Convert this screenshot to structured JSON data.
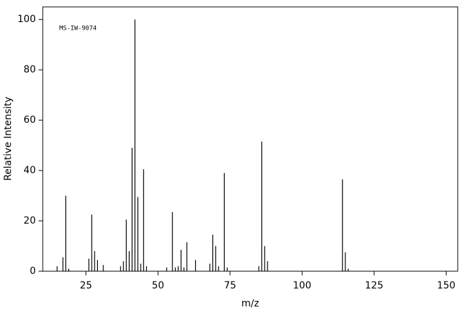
{
  "chart_data": {
    "type": "stem",
    "annotation": "MS-IW-9074",
    "xlabel": "m/z",
    "ylabel": "Relative Intensity",
    "x": [
      15,
      17,
      18,
      19,
      26,
      27,
      28,
      29,
      31,
      37,
      38,
      39,
      40,
      41,
      42,
      43,
      44,
      45,
      46,
      53,
      55,
      56,
      57,
      58,
      59,
      60,
      63,
      68,
      69,
      70,
      71,
      73,
      74,
      85,
      86,
      87,
      88,
      114,
      115,
      116
    ],
    "values": [
      2,
      5.5,
      30,
      1,
      5,
      22.5,
      8,
      4.5,
      2.5,
      2,
      4,
      20.5,
      8,
      49,
      100,
      29.5,
      3,
      40.5,
      2,
      1.5,
      23.5,
      1.5,
      2,
      8.5,
      1.5,
      11.5,
      4.5,
      3,
      14.5,
      10,
      2,
      39,
      1.5,
      2,
      51.5,
      10,
      4,
      36.5,
      7.5,
      1
    ],
    "color": "#000000",
    "xlim": [
      10,
      154
    ],
    "ylim": [
      0,
      105
    ],
    "xticks": [
      25,
      50,
      75,
      100,
      125,
      150
    ],
    "yticks": [
      0,
      20,
      40,
      60,
      80,
      100
    ]
  }
}
